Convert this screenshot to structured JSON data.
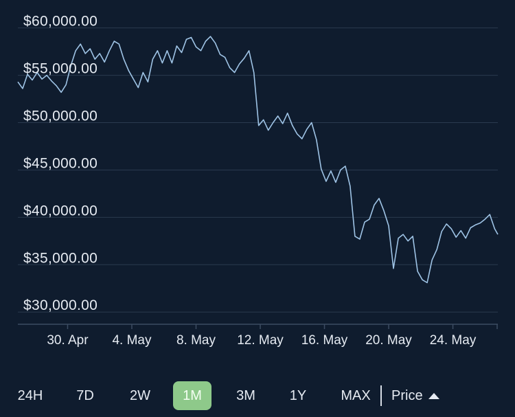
{
  "chart_data": {
    "type": "line",
    "title": "",
    "xlabel": "",
    "ylabel": "",
    "ylim": [
      29000,
      61500
    ],
    "y_ticks": [
      "$60,000.00",
      "$55,000.00",
      "$50,000.00",
      "$45,000.00",
      "$40,000.00",
      "$35,000.00",
      "$30,000.00"
    ],
    "y_tick_values": [
      60000,
      55000,
      50000,
      45000,
      40000,
      35000,
      30000
    ],
    "x_ticks": [
      "30. Apr",
      "4. May",
      "8. May",
      "12. May",
      "16. May",
      "20. May",
      "24. May"
    ],
    "x_tick_values": [
      0,
      4,
      8,
      12,
      16,
      20,
      24
    ],
    "xlim": [
      -3.1,
      26.8
    ],
    "grid": true,
    "series": [
      {
        "x": [
          -3.1,
          -2.8,
          -2.5,
          -2.2,
          -1.9,
          -1.6,
          -1.3,
          -1.0,
          -0.7,
          -0.4,
          -0.1,
          0.2,
          0.5,
          0.8,
          1.1,
          1.4,
          1.7,
          2.0,
          2.3,
          2.6,
          2.9,
          3.2,
          3.5,
          3.8,
          4.1,
          4.4,
          4.7,
          5.0,
          5.3,
          5.6,
          5.9,
          6.2,
          6.5,
          6.8,
          7.1,
          7.4,
          7.7,
          8.0,
          8.3,
          8.6,
          8.9,
          9.2,
          9.5,
          9.8,
          10.1,
          10.4,
          10.7,
          11.0,
          11.3,
          11.6,
          11.9,
          12.2,
          12.5,
          12.8,
          13.1,
          13.4,
          13.7,
          14.0,
          14.3,
          14.6,
          14.9,
          15.2,
          15.5,
          15.8,
          16.1,
          16.4,
          16.7,
          17.0,
          17.3,
          17.6,
          17.9,
          18.2,
          18.5,
          18.8,
          19.1,
          19.4,
          19.7,
          20.0,
          20.3,
          20.6,
          20.9,
          21.2,
          21.5,
          21.8,
          22.1,
          22.4,
          22.7,
          23.0,
          23.3,
          23.6,
          23.9,
          24.2,
          24.5,
          24.8,
          25.1,
          25.4,
          25.7,
          26.0,
          26.3,
          26.6,
          26.8
        ],
        "values": [
          54300,
          53600,
          55100,
          54500,
          55300,
          54600,
          55000,
          54400,
          53900,
          53200,
          54000,
          56000,
          57600,
          58300,
          57300,
          57800,
          56700,
          57300,
          56400,
          57600,
          58600,
          58300,
          56700,
          55500,
          54600,
          53700,
          55300,
          54300,
          56700,
          57600,
          56300,
          57600,
          56300,
          58100,
          57400,
          58800,
          59000,
          58000,
          57600,
          58600,
          59100,
          58400,
          57200,
          56900,
          55800,
          55300,
          56200,
          56800,
          57600,
          55300,
          49700,
          50300,
          49200,
          50000,
          50700,
          49900,
          51000,
          49700,
          48800,
          48300,
          49300,
          50000,
          48200,
          45100,
          43800,
          44900,
          43700,
          45000,
          45400,
          43300,
          38000,
          37700,
          39500,
          39800,
          41300,
          42000,
          40700,
          39100,
          34600,
          37800,
          38200,
          37500,
          38000,
          34300,
          33400,
          33100,
          35500,
          36600,
          38500,
          39300,
          38800,
          37900,
          38600,
          37800,
          38900,
          39200,
          39400,
          39800,
          40300,
          38800,
          38200
        ]
      }
    ]
  },
  "controls": {
    "ranges": [
      "24H",
      "7D",
      "2W",
      "1M",
      "3M",
      "1Y",
      "MAX"
    ],
    "active_range": "1M",
    "price_label": "Price",
    "sort_icon": "triangle-up-icon",
    "active_color": "#8ec98a"
  },
  "colors": {
    "background": "#0f1c2e",
    "line": "#9fc4e6",
    "grid": "#2a3a4f",
    "text": "#e6ebf2"
  }
}
